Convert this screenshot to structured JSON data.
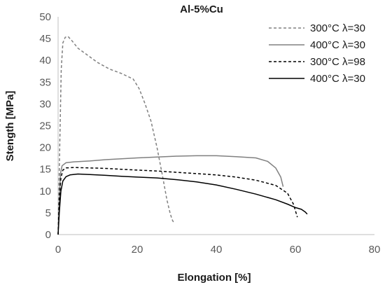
{
  "chart_data": {
    "type": "line",
    "title": "Al-5%Cu",
    "xlabel": "Elongation  [%]",
    "ylabel": "Stength  [MPa]",
    "xlim": [
      0,
      80
    ],
    "ylim": [
      0,
      50
    ],
    "xticks": [
      0,
      20,
      40,
      60,
      80
    ],
    "yticks": [
      0,
      5,
      10,
      15,
      20,
      25,
      30,
      35,
      40,
      45,
      50
    ],
    "grid": false,
    "legend_position": "top-right",
    "series": [
      {
        "name": "300°C λ=30",
        "color": "#808080",
        "dash": "dashed",
        "x": [
          0,
          0.4,
          0.8,
          1.2,
          1.8,
          2.5,
          3.5,
          5,
          7,
          10,
          13,
          16,
          19,
          20.5,
          22,
          23.5,
          25,
          26.5,
          27.5,
          28.3,
          28.8,
          29.2
        ],
        "y": [
          0,
          20,
          38,
          44,
          45.3,
          45.5,
          44.5,
          42.8,
          41.5,
          39.5,
          38,
          37,
          35.7,
          33.5,
          30,
          26,
          20,
          13,
          8,
          5,
          3.5,
          2.8
        ]
      },
      {
        "name": "400°C λ=30",
        "color": "#808080",
        "dash": "solid",
        "x": [
          0,
          0.3,
          0.6,
          1,
          2,
          4,
          8,
          12,
          16,
          20,
          25,
          30,
          35,
          40,
          45,
          50,
          53,
          55,
          56.3,
          56.9
        ],
        "y": [
          0,
          8,
          14,
          15.8,
          16.5,
          16.7,
          16.9,
          17.2,
          17.4,
          17.6,
          17.8,
          18,
          18.1,
          18.1,
          17.9,
          17.6,
          16.8,
          15.3,
          13.2,
          11
        ]
      },
      {
        "name": "300°C λ=98",
        "color": "#000000",
        "dash": "dashed",
        "x": [
          0,
          0.3,
          0.7,
          1.2,
          2,
          4,
          8,
          12,
          16,
          20,
          25,
          30,
          35,
          40,
          45,
          50,
          55,
          58,
          59.5,
          60.5
        ],
        "y": [
          0,
          8,
          13,
          14.8,
          15.3,
          15.4,
          15.3,
          15.2,
          15,
          14.8,
          14.6,
          14.3,
          14,
          13.7,
          13.2,
          12.5,
          11.3,
          9.5,
          7,
          4
        ]
      },
      {
        "name": "400°C λ=30",
        "color": "#000000",
        "dash": "solid",
        "x": [
          0,
          0.3,
          0.7,
          1.2,
          2,
          3,
          5,
          8,
          12,
          16,
          20,
          25,
          30,
          35,
          40,
          45,
          50,
          55,
          58,
          60,
          61.5,
          62.5,
          63
        ],
        "y": [
          0,
          5,
          10,
          12.3,
          13.3,
          13.7,
          13.9,
          13.8,
          13.6,
          13.4,
          13.2,
          13,
          12.6,
          12.1,
          11.4,
          10.4,
          9.3,
          8,
          7,
          6.2,
          5.8,
          5.2,
          4.7
        ]
      }
    ]
  }
}
